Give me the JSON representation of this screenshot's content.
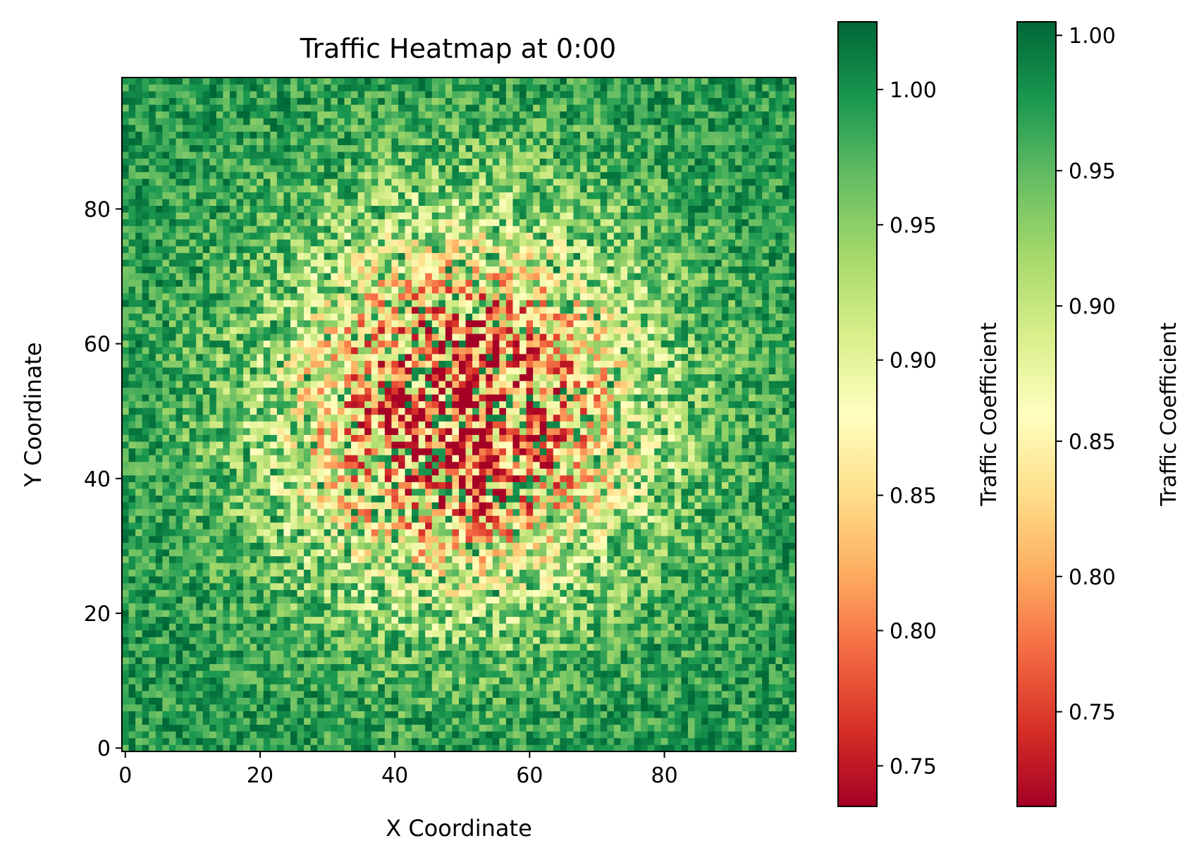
{
  "chart_data": {
    "type": "heatmap",
    "title": "Traffic Heatmap at 0:00",
    "xlabel": "X Coordinate",
    "ylabel": "Y Coordinate",
    "xlim": [
      -0.5,
      99.5
    ],
    "ylim": [
      -0.5,
      99.5
    ],
    "grid": false,
    "origin": "lower",
    "colormap": "RdYlGn",
    "grid_size": [
      100,
      100
    ],
    "x_ticks": [
      "0",
      "20",
      "40",
      "60",
      "80"
    ],
    "y_ticks": [
      "0",
      "20",
      "40",
      "60",
      "80"
    ],
    "field": {
      "model": "traffic coefficient: ~1.0 (green) at the edges, dipping toward ~0.75 (red) near the centre (50, 50), with strong per-cell noise",
      "center": [
        50,
        50
      ],
      "edge_value": 1.0,
      "center_value": 0.76,
      "approx_min": 0.735,
      "approx_max": 1.025
    },
    "colorbars": [
      {
        "label": "Traffic Coefficient",
        "vmin": 0.735,
        "vmax": 1.025,
        "ticks": [
          "0.75",
          "0.80",
          "0.85",
          "0.90",
          "0.95",
          "1.00"
        ]
      },
      {
        "label": "Traffic Coefficient",
        "vmin": 0.715,
        "vmax": 1.005,
        "ticks": [
          "0.75",
          "0.80",
          "0.85",
          "0.90",
          "0.95",
          "1.00"
        ]
      }
    ]
  }
}
